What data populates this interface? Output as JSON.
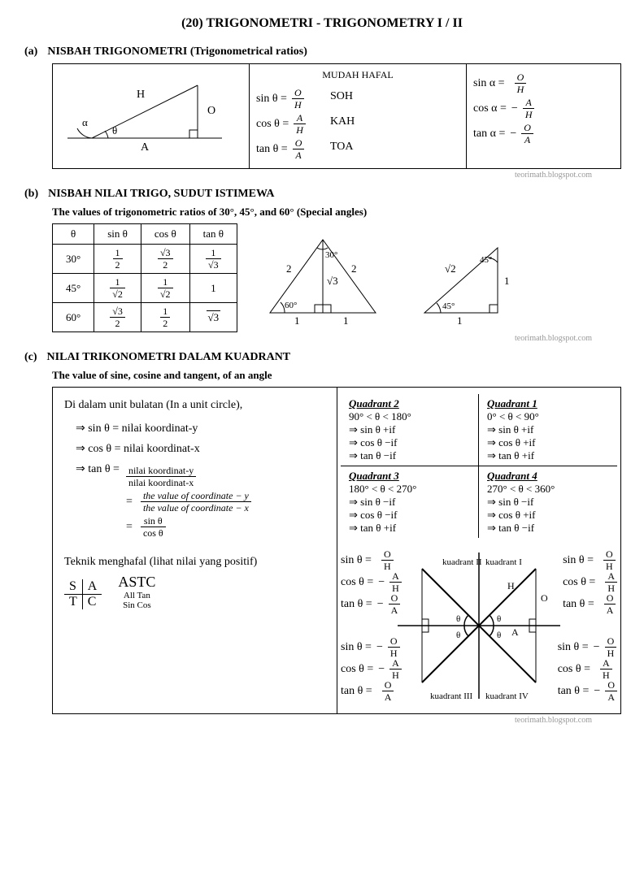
{
  "title": "(20)   TRIGONOMETRI - TRIGONOMETRY  I  /  II",
  "watermark": "teorimath.blogspot.com",
  "a": {
    "idx": "(a)",
    "heading": "NISBAH TRIGONOMETRI (Trigonometrical ratios)",
    "tri": {
      "H": "H",
      "O": "O",
      "A": "A",
      "alpha": "α",
      "theta": "θ"
    },
    "mnemonic_title": "MUDAH HAFAL",
    "mnemonics": [
      "SOH",
      "KAH",
      "TOA"
    ],
    "eqs_theta": [
      {
        "lhs": "sin θ  =",
        "num": "O",
        "den": "H"
      },
      {
        "lhs": "cos θ  =",
        "num": "A",
        "den": "H"
      },
      {
        "lhs": "tan θ  =",
        "num": "O",
        "den": "A"
      }
    ],
    "eqs_alpha": [
      {
        "lhs": "sin α  =",
        "sign": "",
        "num": "O",
        "den": "H"
      },
      {
        "lhs": "cos α  =",
        "sign": "−",
        "num": "A",
        "den": "H"
      },
      {
        "lhs": "tan α  =",
        "sign": "−",
        "num": "O",
        "den": "A"
      }
    ]
  },
  "b": {
    "idx": "(b)",
    "heading": "NISBAH NILAI TRIGO, SUDUT ISTIMEWA",
    "sub": "The values of trigonometric ratios of  30°,  45°,  and  60°     (Special angles)",
    "cols": [
      "θ",
      "sin θ",
      "cos θ",
      "tan θ"
    ],
    "rows": [
      {
        "ang": "30°",
        "sin": {
          "n": "1",
          "d": "2"
        },
        "cos": {
          "n": "√3",
          "d": "2"
        },
        "tan": {
          "n": "1",
          "d": "√3"
        }
      },
      {
        "ang": "45°",
        "sin": {
          "n": "1",
          "d": "√2"
        },
        "cos": {
          "n": "1",
          "d": "√2"
        },
        "tan": "1"
      },
      {
        "ang": "60°",
        "sin": {
          "n": "√3",
          "d": "2"
        },
        "cos": {
          "n": "1",
          "d": "2"
        },
        "tan": "√3"
      }
    ],
    "tri1": {
      "a30": "30°",
      "a60": "60°",
      "side2": "2",
      "h": "√3",
      "base": "1"
    },
    "tri2": {
      "a45": "45°",
      "hyp": "√2",
      "leg": "1"
    }
  },
  "c": {
    "idx": "(c)",
    "heading": "NILAI TRIKONOMETRI DALAM KUADRANT",
    "sub": "The value of sine,  cosine and tangent,  of  an  angle",
    "intro": "Di dalam unit bulatan (In a unit circle),",
    "lines": [
      "⇒  sin θ   =  nilai koordinat-y",
      "⇒  cos θ  =  nilai koordinat-x",
      "⇒  tan θ   ="
    ],
    "tan_fracs": [
      {
        "n": "nilai koordinat-y",
        "d": "nilai koordinat-x"
      },
      {
        "n": "the  value  of  coordinate − y",
        "d": "the  value  of  coordinate − x",
        "italic": true
      },
      {
        "n": "sin  θ",
        "d": "cos θ"
      }
    ],
    "teknik": "Teknik menghafal (lihat nilai yang positif)",
    "astc": {
      "tl": "S",
      "tr": "A",
      "bl": "T",
      "br": "C",
      "label": "ASTC",
      "l1": "All   Tan",
      "l2": "Sin  Cos"
    },
    "quads": [
      {
        "title": "Quadrant 2",
        "range": "90° < θ < 180°",
        "s": "⇒  sin θ   +if",
        "c": "⇒  cos θ  −if",
        "t": "⇒  tan θ   −if"
      },
      {
        "title": "Quadrant 1",
        "range": "0° < θ < 90°",
        "s": "⇒ sin θ   +if",
        "c": "⇒ cos θ  +if",
        "t": "⇒ tan θ   +if"
      },
      {
        "title": "Quadrant 3",
        "range": "180° < θ < 270°",
        "s": "⇒  sin θ   −if",
        "c": "⇒  cos θ  −if",
        "t": "⇒  tan θ   +if"
      },
      {
        "title": "Quadrant 4",
        "range": "270° < θ < 360°",
        "s": "⇒ sin θ   −if",
        "c": "⇒ cos θ  +if",
        "t": "⇒ tan θ   −if"
      }
    ],
    "diag": {
      "q1": "kuadrant I",
      "q2": "kuadrant II",
      "q3": "kuadrant III",
      "q4": "kuadrant IV",
      "H": "H",
      "O": "O",
      "A": "A",
      "theta": "θ",
      "eqs": [
        {
          "lhs": "sin θ =",
          "sign": "",
          "n": "O",
          "d": "H"
        },
        {
          "lhs": "cos θ =",
          "sign": "−",
          "n": "A",
          "d": "H"
        },
        {
          "lhs": "tan θ =",
          "sign": "−",
          "n": "O",
          "d": "A"
        },
        {
          "lhs": "sin θ =",
          "sign": "",
          "n": "O",
          "d": "H"
        },
        {
          "lhs": "cos θ =",
          "sign": "",
          "n": "A",
          "d": "H"
        },
        {
          "lhs": "tan θ =",
          "sign": "",
          "n": "O",
          "d": "A"
        },
        {
          "lhs": "sin θ =",
          "sign": "−",
          "n": "O",
          "d": "H"
        },
        {
          "lhs": "cos θ =",
          "sign": "−",
          "n": "A",
          "d": "H"
        },
        {
          "lhs": "tan θ =",
          "sign": "",
          "n": "O",
          "d": "A"
        },
        {
          "lhs": "sin θ =",
          "sign": "−",
          "n": "O",
          "d": "H"
        },
        {
          "lhs": "cos θ =",
          "sign": "",
          "n": "A",
          "d": "H"
        },
        {
          "lhs": "tan θ =",
          "sign": "−",
          "n": "O",
          "d": "A"
        }
      ]
    }
  }
}
